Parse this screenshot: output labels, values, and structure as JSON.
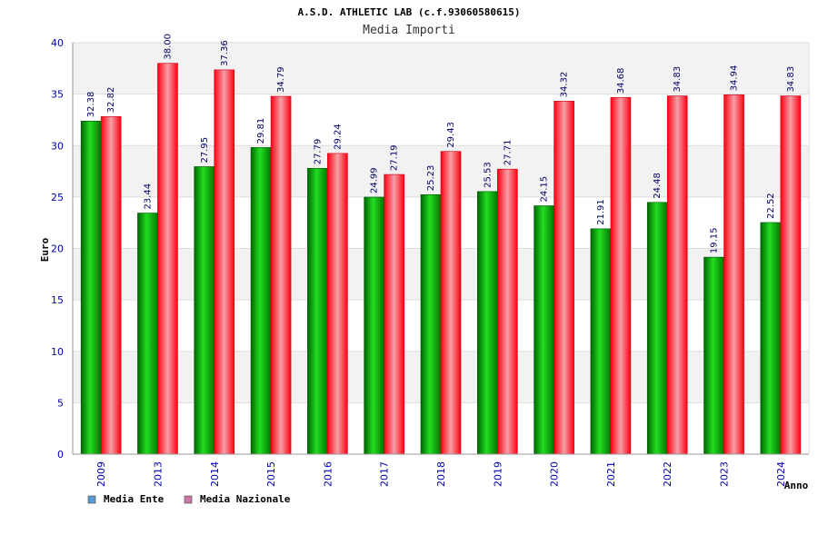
{
  "chart_data": {
    "type": "bar",
    "title": "A.S.D. ATHLETIC LAB (c.f.93060580615)",
    "subtitle": "Media Importi",
    "xlabel": "Anno",
    "ylabel": "Euro",
    "ylim": [
      0,
      40
    ],
    "yticks": [
      "0",
      "5",
      "10",
      "15",
      "20",
      "25",
      "30",
      "35",
      "40"
    ],
    "grid": true,
    "legend_position": "bottom-left",
    "categories": [
      "2009",
      "2013",
      "2014",
      "2015",
      "2016",
      "2017",
      "2018",
      "2019",
      "2020",
      "2021",
      "2022",
      "2023",
      "2024"
    ],
    "series": [
      {
        "name": "Media Ente",
        "color": "#00bb00",
        "legend_color": "#5b9bd5",
        "values": [
          32.38,
          23.44,
          27.95,
          29.81,
          27.79,
          24.99,
          25.23,
          25.53,
          24.15,
          21.91,
          24.48,
          19.15,
          22.52
        ],
        "labels": [
          "32.38",
          "23.44",
          "27.95",
          "29.81",
          "27.79",
          "24.99",
          "25.23",
          "25.53",
          "24.15",
          "21.91",
          "24.48",
          "19.15",
          "22.52"
        ]
      },
      {
        "name": "Media Nazionale",
        "color": "#ee1122",
        "legend_color": "#cc77aa",
        "values": [
          32.82,
          38.0,
          37.36,
          34.79,
          29.24,
          27.19,
          29.43,
          27.71,
          34.32,
          34.68,
          34.83,
          34.94,
          34.83
        ],
        "labels": [
          "32.82",
          "38.00",
          "37.36",
          "34.79",
          "29.24",
          "27.19",
          "29.43",
          "27.71",
          "34.32",
          "34.68",
          "34.83",
          "34.94",
          "34.83"
        ]
      }
    ]
  }
}
